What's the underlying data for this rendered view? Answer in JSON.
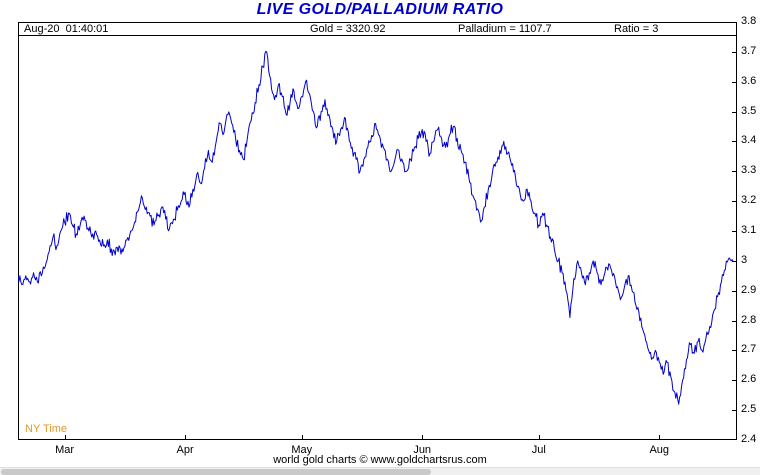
{
  "title": "LIVE GOLD/PALLADIUM RATIO",
  "header": {
    "timestamp": "Aug-20  01:40:01",
    "gold": "Gold = 3320.92",
    "palladium": "Palladium = 1107.7",
    "ratio": "Ratio = 3"
  },
  "footer": {
    "ny_time": "NY Time",
    "credit": "world gold charts © www.goldchartsrus.com"
  },
  "colors": {
    "line": "#0000cc",
    "title": "#0000cc",
    "ny_time": "#e09a28",
    "axis": "#000000"
  },
  "chart_data": {
    "type": "line",
    "title": "LIVE GOLD/PALLADIUM RATIO",
    "series_name": "Gold/Palladium Ratio",
    "x_unit": "daily points, late Feb through Aug-20",
    "ylim": [
      2.4,
      3.8
    ],
    "ytick_step": 0.1,
    "y_ticks": [
      "3.8",
      "3.7",
      "3.6",
      "3.5",
      "3.4",
      "3.3",
      "3.2",
      "3.1",
      "3",
      "2.9",
      "2.8",
      "2.7",
      "2.6",
      "2.5",
      "2.4"
    ],
    "x_month_ticks": [
      {
        "label": "Mar",
        "i": 12
      },
      {
        "label": "Apr",
        "i": 43
      },
      {
        "label": "May",
        "i": 73
      },
      {
        "label": "Jun",
        "i": 104
      },
      {
        "label": "Jul",
        "i": 134
      },
      {
        "label": "Aug",
        "i": 165
      }
    ],
    "axis_days": 186,
    "grid": false,
    "legend": false,
    "values": [
      2.95,
      2.92,
      2.95,
      2.93,
      2.96,
      2.93,
      2.95,
      2.98,
      3.03,
      3.08,
      3.05,
      3.1,
      3.13,
      3.16,
      3.12,
      3.09,
      3.12,
      3.15,
      3.11,
      3.08,
      3.1,
      3.07,
      3.05,
      3.07,
      3.04,
      3.02,
      3.05,
      3.03,
      3.07,
      3.1,
      3.13,
      3.17,
      3.21,
      3.18,
      3.15,
      3.12,
      3.15,
      3.18,
      3.14,
      3.11,
      3.14,
      3.17,
      3.2,
      3.23,
      3.18,
      3.24,
      3.29,
      3.26,
      3.31,
      3.37,
      3.33,
      3.4,
      3.46,
      3.43,
      3.49,
      3.46,
      3.41,
      3.37,
      3.34,
      3.41,
      3.47,
      3.53,
      3.59,
      3.65,
      3.7,
      3.61,
      3.54,
      3.59,
      3.55,
      3.49,
      3.53,
      3.57,
      3.51,
      3.55,
      3.6,
      3.56,
      3.5,
      3.45,
      3.5,
      3.54,
      3.49,
      3.44,
      3.4,
      3.44,
      3.48,
      3.43,
      3.38,
      3.34,
      3.3,
      3.34,
      3.38,
      3.42,
      3.46,
      3.42,
      3.38,
      3.34,
      3.3,
      3.34,
      3.37,
      3.33,
      3.3,
      3.34,
      3.38,
      3.41,
      3.44,
      3.4,
      3.36,
      3.4,
      3.44,
      3.41,
      3.38,
      3.42,
      3.45,
      3.41,
      3.37,
      3.33,
      3.28,
      3.22,
      3.17,
      3.13,
      3.18,
      3.24,
      3.29,
      3.33,
      3.37,
      3.4,
      3.36,
      3.32,
      3.28,
      3.24,
      3.2,
      3.24,
      3.2,
      3.16,
      3.12,
      3.16,
      3.12,
      3.08,
      3.04,
      3.0,
      2.96,
      2.9,
      2.81,
      2.94,
      3.0,
      2.96,
      2.92,
      2.96,
      3.0,
      2.96,
      2.92,
      2.96,
      2.99,
      2.95,
      2.91,
      2.87,
      2.91,
      2.95,
      2.9,
      2.85,
      2.8,
      2.76,
      2.71,
      2.67,
      2.7,
      2.66,
      2.62,
      2.66,
      2.61,
      2.56,
      2.52,
      2.6,
      2.67,
      2.72,
      2.69,
      2.73,
      2.7,
      2.74,
      2.78,
      2.83,
      2.88,
      2.93,
      2.97,
      3.01,
      3.0
    ]
  }
}
